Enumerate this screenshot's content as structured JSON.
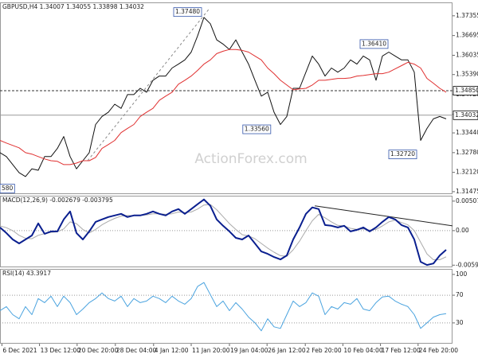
{
  "watermark": "ActionForex.com",
  "chart_data": [
    {
      "type": "line",
      "title": "GBPUSD,H4 1.34007 1.34055 1.33898 1.34032",
      "xlim": [
        0,
        71
      ],
      "ylim": [
        1.3142,
        1.3775
      ],
      "yticks": [
        1.37355,
        1.36695,
        1.36035,
        {
          "value": 1.3539,
          "label": "1.35390"
        },
        {
          "value": 1.3472,
          "label": "1.34720"
        },
        {
          "value": 1.3406,
          "label": "1.34060"
        },
        {
          "value": 1.3344,
          "label": "1.33440"
        },
        {
          "value": 1.3278,
          "label": "1.32780"
        },
        {
          "value": 1.3212,
          "label": "1.32120"
        },
        1.31475
      ],
      "series": [
        {
          "color": "#111111",
          "values": [
            1.3278,
            1.3265,
            1.3238,
            1.3211,
            1.3198,
            1.3224,
            1.3219,
            1.3265,
            1.3265,
            1.3292,
            1.3332,
            1.3265,
            1.3224,
            1.3251,
            1.3278,
            1.3372,
            1.3399,
            1.3413,
            1.344,
            1.3426,
            1.3472,
            1.3472,
            1.3493,
            1.348,
            1.352,
            1.3534,
            1.3534,
            1.3561,
            1.3574,
            1.3588,
            1.3614,
            1.3668,
            1.373,
            1.3709,
            1.3655,
            1.3641,
            1.3623,
            1.3655,
            1.3614,
            1.3574,
            1.352,
            1.3467,
            1.348,
            1.3413,
            1.3372,
            1.3399,
            1.3493,
            1.3493,
            1.3547,
            1.3601,
            1.3574,
            1.3534,
            1.3561,
            1.3547,
            1.3561,
            1.3588,
            1.3574,
            1.3601,
            1.3588,
            1.352,
            1.3601,
            1.3614,
            1.3601,
            1.3588,
            1.3588,
            1.3547,
            1.3319,
            1.3359,
            1.3391,
            1.3399,
            1.3391
          ]
        },
        {
          "color": "#e03030",
          "values": [
            1.3319,
            1.331,
            1.3302,
            1.3294,
            1.3278,
            1.3273,
            1.3265,
            1.3257,
            1.3251,
            1.3249,
            1.3238,
            1.3238,
            1.3243,
            1.3251,
            1.3251,
            1.3262,
            1.3292,
            1.3305,
            1.3319,
            1.3345,
            1.3359,
            1.3372,
            1.3399,
            1.3413,
            1.3426,
            1.3453,
            1.3467,
            1.348,
            1.3507,
            1.352,
            1.3534,
            1.3553,
            1.3574,
            1.3588,
            1.3609,
            1.3617,
            1.3623,
            1.3623,
            1.362,
            1.3614,
            1.3601,
            1.3588,
            1.3561,
            1.3542,
            1.352,
            1.3504,
            1.3488,
            1.3491,
            1.3493,
            1.3504,
            1.352,
            1.352,
            1.3523,
            1.3526,
            1.3526,
            1.3528,
            1.3534,
            1.3536,
            1.3539,
            1.3542,
            1.3542,
            1.3547,
            1.3558,
            1.3569,
            1.358,
            1.3574,
            1.3561,
            1.3526,
            1.351,
            1.3493,
            1.348
          ]
        }
      ],
      "trendline": {
        "x": [
          13.75,
          32.75
        ],
        "values": [
          1.3251,
          1.3757
        ],
        "color": "#888888",
        "style": "dashed"
      },
      "hlines": [
        {
          "value": 1.3485,
          "label": "1.34850",
          "style": "dashed",
          "color": "#333333"
        },
        {
          "value": 1.34032,
          "label": "1.34032",
          "style": "solid",
          "color": "#999999"
        }
      ],
      "annotations": [
        {
          "label": "1.37480",
          "value": 1.3748,
          "x": 27.25
        },
        {
          "label": "1.36410",
          "value": 1.3641,
          "x": 56.5
        },
        {
          "label": "1.33560",
          "value": 1.3356,
          "x": 38.1
        },
        {
          "label": "1.32720",
          "value": 1.3272,
          "x": 61
        },
        {
          "label": "580",
          "value": 1.3158,
          "x": 0
        }
      ]
    },
    {
      "type": "line",
      "title": "MACD(12,26,9) -0.002679 -0.003795",
      "xlim": [
        0,
        71
      ],
      "ylim": [
        -0.0063,
        0.006
      ],
      "yticks": [
        0.00507,
        {
          "value": 0,
          "label": "0.00"
        },
        -0.00593
      ],
      "levels": [
        0
      ],
      "series": [
        {
          "color": "#aaaaaa",
          "values": [
            0.0008,
            0.0005,
            0.0,
            -0.0008,
            -0.0013,
            -0.0014,
            -0.0008,
            -0.0005,
            -0.0003,
            -0.0002,
            0.0003,
            0.0015,
            0.0012,
            0.0002,
            -0.0004,
            0.0002,
            0.001,
            0.0016,
            0.0021,
            0.0025,
            0.0026,
            0.0026,
            0.0026,
            0.0027,
            0.0029,
            0.0029,
            0.0028,
            0.0029,
            0.0032,
            0.0031,
            0.0032,
            0.0037,
            0.0044,
            0.0045,
            0.0036,
            0.0024,
            0.0012,
            0.0002,
            -0.0007,
            -0.0009,
            -0.0014,
            -0.0022,
            -0.003,
            -0.0037,
            -0.0043,
            -0.0044,
            -0.0033,
            -0.0018,
            0.0,
            0.0017,
            0.0028,
            0.0022,
            0.0015,
            0.0009,
            0.0008,
            0.0004,
            0.0002,
            0.0003,
            0.0001,
            0.0002,
            0.0008,
            0.0015,
            0.0018,
            0.0014,
            0.001,
            0.0,
            -0.002,
            -0.004,
            -0.005,
            -0.005,
            -0.0045
          ]
        },
        {
          "color": "#0a1f8f",
          "values": [
            0.00055,
            -0.00041,
            -0.00151,
            -0.0022,
            -0.00151,
            -0.00083,
            0.00124,
            -0.00055,
            -0.00014,
            -0.00014,
            0.00193,
            0.0033,
            -0.00041,
            -0.00151,
            -0.00014,
            0.00151,
            0.00193,
            0.00234,
            0.00261,
            0.00289,
            0.00234,
            0.00261,
            0.00261,
            0.00289,
            0.0033,
            0.00289,
            0.00261,
            0.0033,
            0.00371,
            0.00289,
            0.00371,
            0.00454,
            0.00536,
            0.00426,
            0.00193,
            0.00083,
            -0.00014,
            -0.00124,
            -0.00151,
            -0.00083,
            -0.0022,
            -0.00358,
            -0.00399,
            -0.00454,
            -0.00495,
            -0.00426,
            -0.00151,
            0.00055,
            0.00289,
            0.00399,
            0.00371,
            0.00096,
            0.00083,
            0.00055,
            0.00083,
            -0.00014,
            0.00014,
            0.00055,
            -0.00014,
            0.00055,
            0.00151,
            0.00234,
            0.00193,
            0.00096,
            0.00055,
            -0.00151,
            -0.00536,
            -0.00591,
            -0.00564,
            -0.00426,
            -0.0033
          ]
        }
      ],
      "trendline": {
        "x": [
          49.4,
          71
        ],
        "values": [
          0.00426,
          0.00083
        ],
        "color": "#222222",
        "style": "solid"
      }
    },
    {
      "type": "line",
      "title": "RSI(14) 43.3917",
      "xlim": [
        0,
        71
      ],
      "ylim": [
        0,
        108
      ],
      "yticks": [
        100,
        70,
        30
      ],
      "levels": [
        70,
        30
      ],
      "series": [
        {
          "color": "#4aa3df",
          "values": [
            47.7,
            53.5,
            41.9,
            36.0,
            53.5,
            41.9,
            65.1,
            59.3,
            68.6,
            53.5,
            68.6,
            59.3,
            41.9,
            50.0,
            59.3,
            65.1,
            73.3,
            65.1,
            61.6,
            68.6,
            53.5,
            65.1,
            59.3,
            61.6,
            68.6,
            65.1,
            59.3,
            68.6,
            61.6,
            57.0,
            65.1,
            82.6,
            88.4,
            70.9,
            53.5,
            61.6,
            47.7,
            59.3,
            50.0,
            38.4,
            30.2,
            18.6,
            36.0,
            24.4,
            22.1,
            41.9,
            61.6,
            53.5,
            59.3,
            73.3,
            68.6,
            41.9,
            53.5,
            50.0,
            59.3,
            57.0,
            65.1,
            50.0,
            47.7,
            59.3,
            67.4,
            68.6,
            61.6,
            57.0,
            53.5,
            41.9,
            22.1,
            30.2,
            38.4,
            41.9,
            43.4
          ]
        }
      ],
      "xticks": [
        {
          "value": 0.3,
          "label": "6 Dec 2021"
        },
        {
          "value": 6.2,
          "label": "13 Dec 12:00"
        },
        {
          "value": 12.1,
          "label": "20 Dec 20:00"
        },
        {
          "value": 18.1,
          "label": "28 Dec 04:00"
        },
        {
          "value": 24.1,
          "label": "4 Jan 12:00"
        },
        {
          "value": 30,
          "label": "11 Jan 20:00"
        },
        {
          "value": 36,
          "label": "19 Jan 04:00"
        },
        {
          "value": 41.9,
          "label": "26 Jan 12:00"
        },
        {
          "value": 47.9,
          "label": "2 Feb 20:00"
        },
        {
          "value": 53.8,
          "label": "10 Feb 04:00"
        },
        {
          "value": 59.7,
          "label": "17 Feb 12:00"
        },
        {
          "value": 65.6,
          "label": "24 Feb 20:00"
        }
      ]
    }
  ]
}
